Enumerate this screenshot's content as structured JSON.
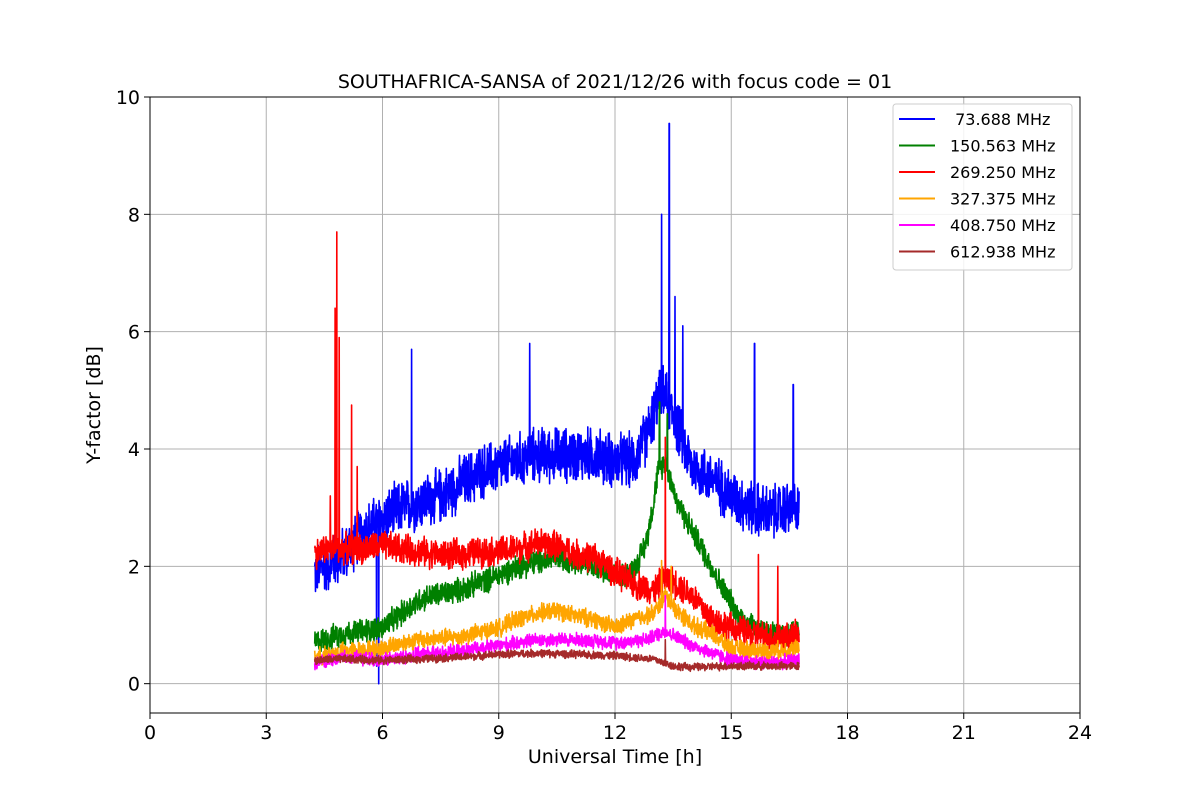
{
  "chart_data": {
    "type": "line",
    "title": "SOUTHAFRICA-SANSA of 2021/12/26 with focus code = 01",
    "xlabel": "Universal Time [h]",
    "ylabel": "Y-factor [dB]",
    "xlim": [
      0,
      24
    ],
    "ylim": [
      -0.5,
      10
    ],
    "xticks": [
      0,
      3,
      6,
      9,
      12,
      15,
      18,
      21,
      24
    ],
    "yticks": [
      0,
      2,
      4,
      6,
      8,
      10
    ],
    "grid": true,
    "legend_position": "top-right",
    "series": [
      {
        "name": " 73.688 MHz",
        "color": "#0000ff",
        "noise": 0.55,
        "points": [
          [
            4.25,
            1.9
          ],
          [
            4.5,
            2.0
          ],
          [
            5.0,
            2.2
          ],
          [
            5.5,
            2.6
          ],
          [
            6.0,
            2.8
          ],
          [
            6.5,
            3.0
          ],
          [
            7.0,
            3.1
          ],
          [
            7.5,
            3.2
          ],
          [
            8.0,
            3.4
          ],
          [
            8.5,
            3.6
          ],
          [
            9.0,
            3.7
          ],
          [
            9.5,
            3.8
          ],
          [
            10.0,
            3.9
          ],
          [
            10.5,
            3.9
          ],
          [
            11.0,
            3.9
          ],
          [
            11.5,
            3.9
          ],
          [
            12.0,
            3.8
          ],
          [
            12.5,
            3.8
          ],
          [
            12.8,
            4.2
          ],
          [
            13.0,
            4.6
          ],
          [
            13.2,
            5.0
          ],
          [
            13.5,
            4.6
          ],
          [
            13.8,
            4.0
          ],
          [
            14.0,
            3.7
          ],
          [
            14.5,
            3.5
          ],
          [
            15.0,
            3.2
          ],
          [
            15.5,
            3.0
          ],
          [
            16.0,
            2.9
          ],
          [
            16.5,
            3.0
          ],
          [
            16.75,
            2.9
          ]
        ],
        "spikes": [
          [
            5.85,
            0.3
          ],
          [
            5.9,
            0.0
          ],
          [
            6.75,
            5.7
          ],
          [
            9.8,
            5.8
          ],
          [
            13.2,
            8.0
          ],
          [
            13.4,
            9.55
          ],
          [
            13.55,
            6.6
          ],
          [
            13.75,
            6.1
          ],
          [
            15.6,
            5.8
          ],
          [
            16.6,
            5.1
          ]
        ]
      },
      {
        "name": "150.563 MHz",
        "color": "#008000",
        "noise": 0.25,
        "points": [
          [
            4.25,
            0.7
          ],
          [
            5.0,
            0.85
          ],
          [
            6.0,
            0.95
          ],
          [
            6.5,
            1.2
          ],
          [
            7.0,
            1.45
          ],
          [
            8.0,
            1.6
          ],
          [
            9.0,
            1.85
          ],
          [
            9.5,
            2.0
          ],
          [
            10.5,
            2.15
          ],
          [
            11.0,
            2.1
          ],
          [
            11.5,
            2.0
          ],
          [
            12.0,
            1.8
          ],
          [
            12.5,
            1.95
          ],
          [
            12.8,
            2.4
          ],
          [
            13.0,
            3.1
          ],
          [
            13.1,
            3.6
          ],
          [
            13.3,
            3.8
          ],
          [
            13.6,
            3.1
          ],
          [
            14.0,
            2.6
          ],
          [
            14.4,
            2.1
          ],
          [
            14.8,
            1.6
          ],
          [
            15.2,
            1.15
          ],
          [
            15.8,
            0.9
          ],
          [
            16.3,
            0.8
          ],
          [
            16.75,
            0.95
          ]
        ],
        "spikes": [
          [
            13.15,
            4.8
          ],
          [
            13.35,
            4.6
          ]
        ]
      },
      {
        "name": "269.250 MHz",
        "color": "#ff0000",
        "noise": 0.3,
        "points": [
          [
            4.25,
            2.2
          ],
          [
            4.5,
            2.3
          ],
          [
            5.0,
            2.3
          ],
          [
            5.5,
            2.3
          ],
          [
            6.0,
            2.35
          ],
          [
            6.5,
            2.3
          ],
          [
            7.0,
            2.25
          ],
          [
            7.5,
            2.2
          ],
          [
            8.0,
            2.2
          ],
          [
            8.5,
            2.25
          ],
          [
            9.0,
            2.25
          ],
          [
            9.5,
            2.3
          ],
          [
            10.0,
            2.4
          ],
          [
            10.5,
            2.35
          ],
          [
            11.0,
            2.2
          ],
          [
            11.5,
            2.15
          ],
          [
            12.0,
            1.9
          ],
          [
            12.5,
            1.7
          ],
          [
            13.0,
            1.6
          ],
          [
            13.3,
            1.8
          ],
          [
            13.6,
            1.7
          ],
          [
            14.0,
            1.5
          ],
          [
            14.5,
            1.1
          ],
          [
            15.0,
            0.95
          ],
          [
            15.5,
            0.85
          ],
          [
            16.0,
            0.8
          ],
          [
            16.5,
            0.8
          ],
          [
            16.75,
            0.8
          ]
        ],
        "spikes": [
          [
            4.65,
            3.2
          ],
          [
            4.78,
            6.4
          ],
          [
            4.82,
            7.7
          ],
          [
            4.88,
            5.9
          ],
          [
            5.2,
            4.75
          ],
          [
            5.35,
            3.7
          ],
          [
            13.3,
            4.2
          ],
          [
            15.7,
            2.2
          ],
          [
            16.2,
            2.0
          ]
        ]
      },
      {
        "name": "327.375 MHz",
        "color": "#ffa500",
        "noise": 0.18,
        "points": [
          [
            4.25,
            0.45
          ],
          [
            5.0,
            0.55
          ],
          [
            6.0,
            0.6
          ],
          [
            6.5,
            0.7
          ],
          [
            7.0,
            0.75
          ],
          [
            8.0,
            0.8
          ],
          [
            9.0,
            0.95
          ],
          [
            9.5,
            1.1
          ],
          [
            10.0,
            1.2
          ],
          [
            10.5,
            1.25
          ],
          [
            11.0,
            1.15
          ],
          [
            11.5,
            1.1
          ],
          [
            12.0,
            0.95
          ],
          [
            12.5,
            1.1
          ],
          [
            13.0,
            1.2
          ],
          [
            13.3,
            1.5
          ],
          [
            13.6,
            1.25
          ],
          [
            14.0,
            1.0
          ],
          [
            14.5,
            0.85
          ],
          [
            15.0,
            0.6
          ],
          [
            16.0,
            0.55
          ],
          [
            16.75,
            0.6
          ]
        ],
        "spikes": [
          [
            13.2,
            2.1
          ],
          [
            13.45,
            2.0
          ]
        ]
      },
      {
        "name": "408.750 MHz",
        "color": "#ff00ff",
        "noise": 0.14,
        "points": [
          [
            4.25,
            0.35
          ],
          [
            5.0,
            0.45
          ],
          [
            6.0,
            0.4
          ],
          [
            7.0,
            0.5
          ],
          [
            8.0,
            0.55
          ],
          [
            9.0,
            0.65
          ],
          [
            10.0,
            0.75
          ],
          [
            11.0,
            0.75
          ],
          [
            12.0,
            0.7
          ],
          [
            12.8,
            0.75
          ],
          [
            13.3,
            0.9
          ],
          [
            14.0,
            0.65
          ],
          [
            15.0,
            0.4
          ],
          [
            16.0,
            0.35
          ],
          [
            16.75,
            0.4
          ]
        ],
        "spikes": [
          [
            13.3,
            1.5
          ]
        ]
      },
      {
        "name": "612.938 MHz",
        "color": "#a52a2a",
        "noise": 0.08,
        "points": [
          [
            4.25,
            0.4
          ],
          [
            5.0,
            0.42
          ],
          [
            6.0,
            0.4
          ],
          [
            7.0,
            0.42
          ],
          [
            8.0,
            0.45
          ],
          [
            9.0,
            0.5
          ],
          [
            10.0,
            0.52
          ],
          [
            11.0,
            0.5
          ],
          [
            12.0,
            0.48
          ],
          [
            13.0,
            0.42
          ],
          [
            13.5,
            0.3
          ],
          [
            14.0,
            0.28
          ],
          [
            15.0,
            0.3
          ],
          [
            16.0,
            0.3
          ],
          [
            16.75,
            0.3
          ]
        ],
        "spikes": [
          [
            13.3,
            0.75
          ]
        ]
      }
    ]
  }
}
